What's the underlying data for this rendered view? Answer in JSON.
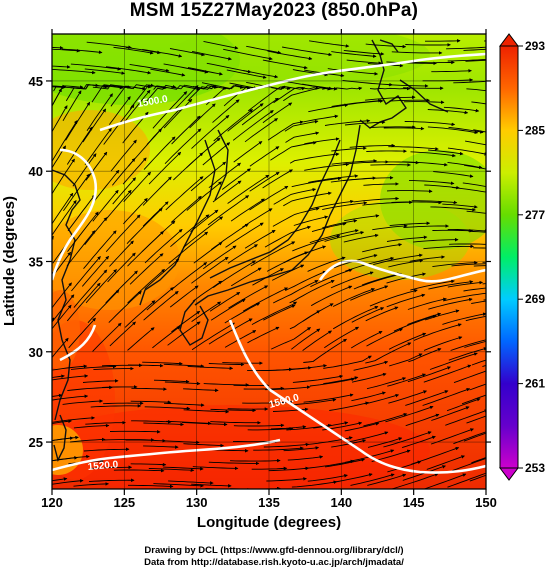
{
  "title": "MSM 15Z27May2023 (850.0hPa)",
  "axes": {
    "xlabel": "Longitude (degrees)",
    "ylabel": "Latitude  (degrees)",
    "x_ticks": [
      "120",
      "125",
      "130",
      "135",
      "140",
      "145",
      "150"
    ],
    "y_ticks": [
      "25",
      "30",
      "35",
      "40",
      "45"
    ],
    "xlim": [
      120,
      150
    ],
    "ylim": [
      22.4,
      47.6
    ]
  },
  "colorbar": {
    "labels": [
      "293",
      "285",
      "277",
      "269",
      "261",
      "253"
    ],
    "min": 253,
    "max": 293,
    "colors": [
      "#cc00cc",
      "#3300cc",
      "#0066ff",
      "#00ccff",
      "#00ee66",
      "#66dd00",
      "#ccee00",
      "#ffcc00",
      "#ff6600",
      "#ee2200"
    ]
  },
  "contours": [
    "1500.0",
    "1560.0",
    "1520.0"
  ],
  "credits": [
    "Drawing by DCL (https://www.gfd-dennou.org/library/dcl/)",
    "Data from http://database.rish.kyoto-u.ac.jp/arch/jmadata/"
  ]
}
